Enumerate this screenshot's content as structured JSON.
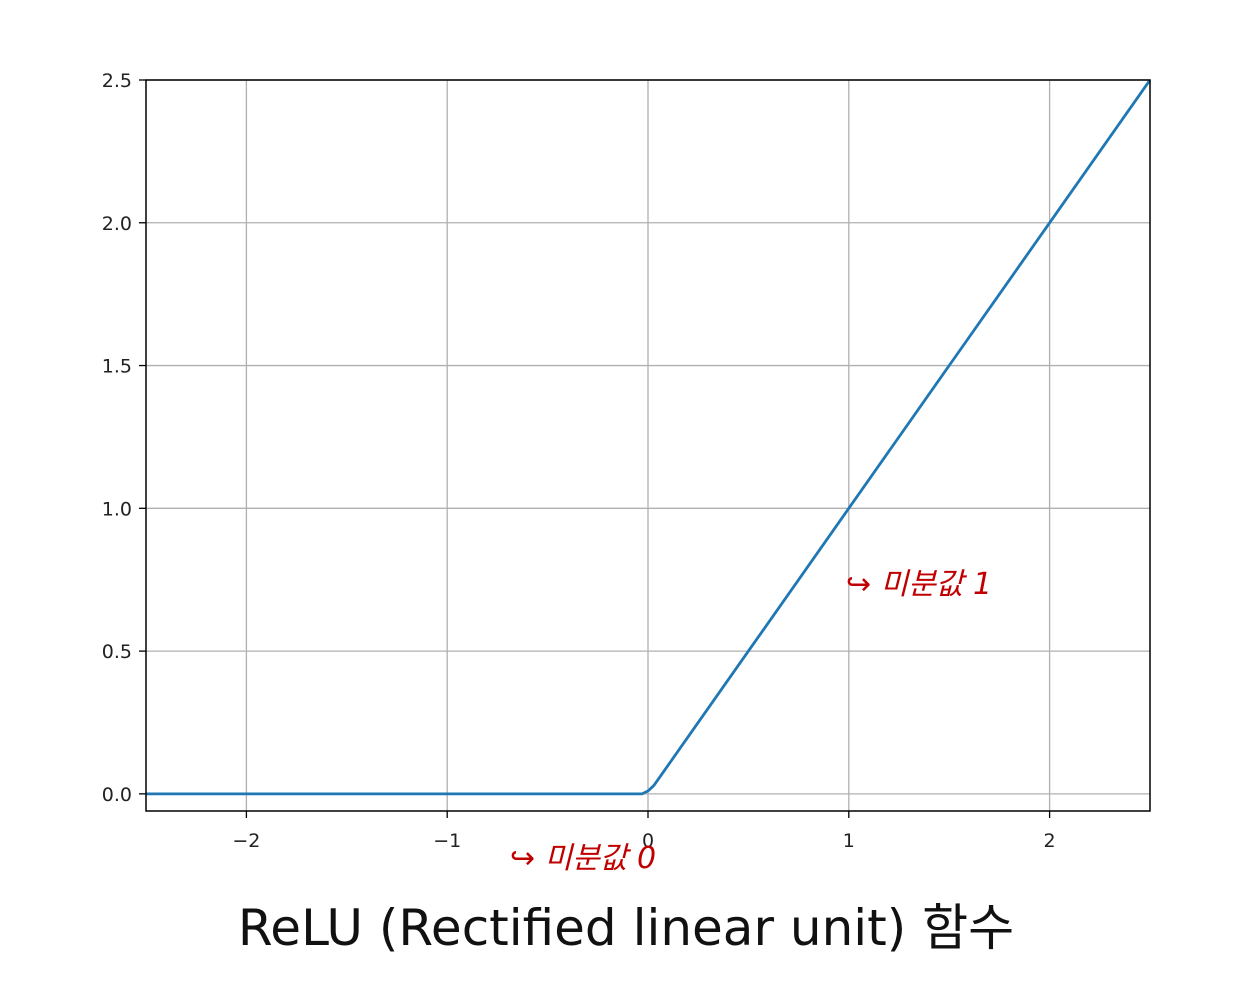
{
  "chart_data": {
    "type": "line",
    "title": "",
    "xlabel": "",
    "ylabel": "",
    "xlim": [
      -2.5,
      2.5
    ],
    "ylim": [
      -0.06,
      2.5
    ],
    "x_ticks": [
      -2,
      -1,
      0,
      1,
      2
    ],
    "x_tick_labels": [
      "−2",
      "−1",
      "0",
      "1",
      "2"
    ],
    "y_ticks": [
      0.0,
      0.5,
      1.0,
      1.5,
      2.0,
      2.5
    ],
    "y_tick_labels": [
      "0.0",
      "0.5",
      "1.0",
      "1.5",
      "2.0",
      "2.5"
    ],
    "grid": true,
    "series": [
      {
        "color": "#1f77b4",
        "x": [
          -2.5,
          -2.0,
          -1.5,
          -1.0,
          -0.5,
          -0.03,
          0.0,
          0.03,
          0.5,
          1.0,
          1.5,
          2.0,
          2.5
        ],
        "y": [
          0.0,
          0.0,
          0.0,
          0.0,
          0.0,
          0.0,
          0.01,
          0.03,
          0.5,
          1.0,
          1.5,
          2.0,
          2.5
        ]
      }
    ],
    "annotations": [
      {
        "text": "↪ 미분값 1",
        "x": 1.0,
        "y": 0.75
      },
      {
        "text": "↪ 미분값 0",
        "x": -0.7,
        "y": -0.25
      }
    ]
  },
  "caption": "ReLU (Rectified linear unit) 함수",
  "colors": {
    "line": "#1f77b4",
    "grid": "#b0b0b0",
    "annotation": "#c00000"
  }
}
